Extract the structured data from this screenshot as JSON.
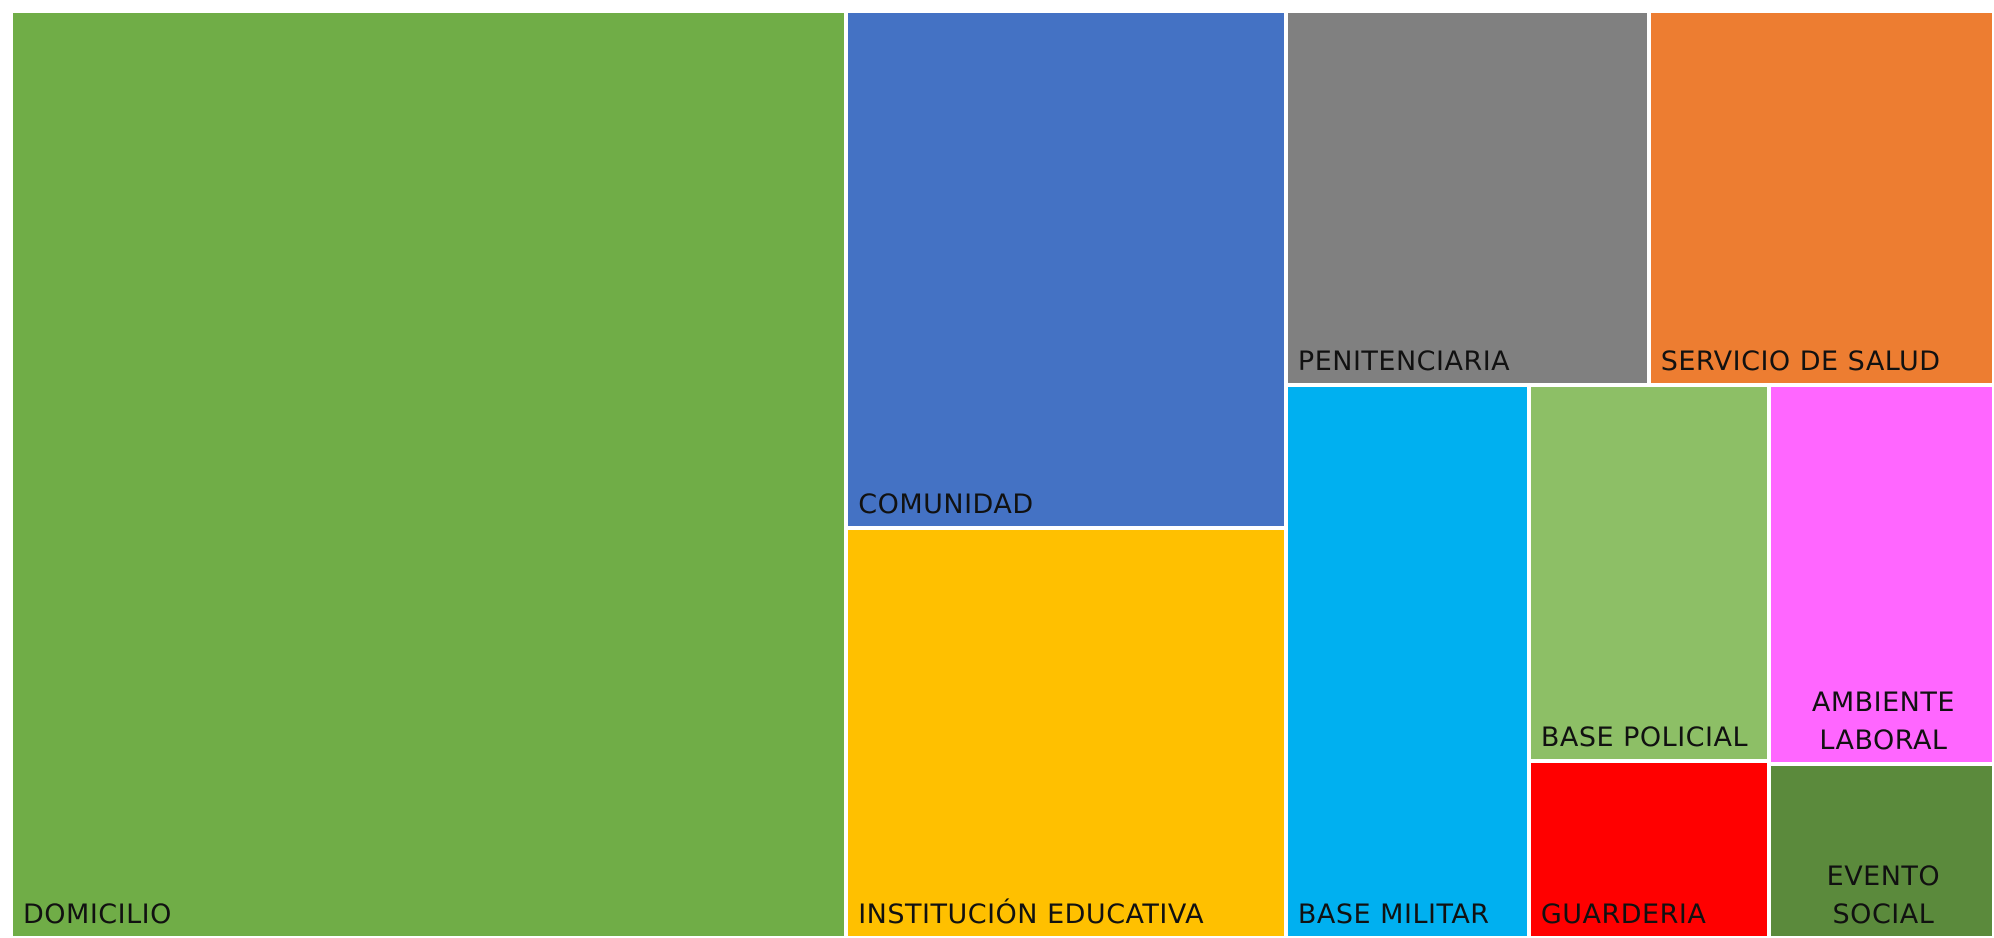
{
  "chart_data": {
    "type": "treemap",
    "categories": [
      "DOMICILIO",
      "COMUNIDAD",
      "INSTITUCIÓN EDUCATIVA",
      "PENITENCIARIA",
      "SERVICIO DE SALUD",
      "BASE MILITAR",
      "BASE POLICIAL",
      "AMBIENTE LABORAL",
      "GUARDERIA",
      "EVENTO SOCIAL"
    ],
    "values": [
      473,
      139,
      110,
      83,
      79,
      82,
      55,
      52,
      26,
      24
    ],
    "colors": [
      "#70ad47",
      "#4472c4",
      "#ffc000",
      "#808080",
      "#ed7d31",
      "#00b0f0",
      "#8dbf66",
      "#ff66ff",
      "#ff0000",
      "#5b8a3c"
    ]
  }
}
